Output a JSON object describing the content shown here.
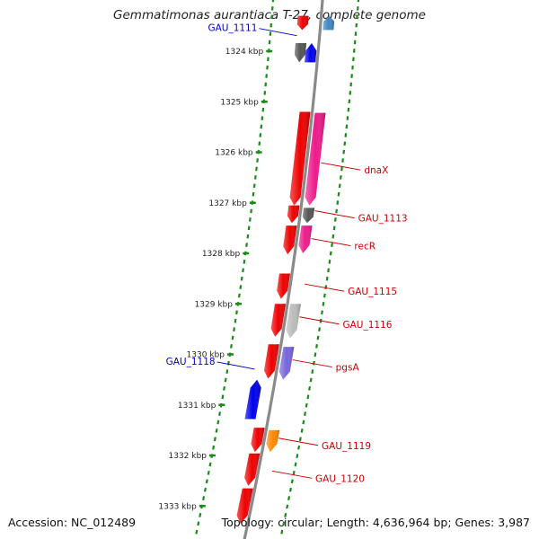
{
  "title": "Gemmatimonas aurantiaca T-27, complete genome",
  "footer": {
    "accession": "Accession: NC_012489",
    "summary": "Topology: circular; Length: 4,636,964 bp; Genes: 3,987"
  },
  "ticks": [
    {
      "label": "1324 kbp",
      "kbp": 1324
    },
    {
      "label": "1325 kbp",
      "kbp": 1325
    },
    {
      "label": "1326 kbp",
      "kbp": 1326
    },
    {
      "label": "1327 kbp",
      "kbp": 1327
    },
    {
      "label": "1328 kbp",
      "kbp": 1328
    },
    {
      "label": "1329 kbp",
      "kbp": 1329
    },
    {
      "label": "1330 kbp",
      "kbp": 1330
    },
    {
      "label": "1331 kbp",
      "kbp": 1331
    },
    {
      "label": "1332 kbp",
      "kbp": 1332
    },
    {
      "label": "1333 kbp",
      "kbp": 1333
    }
  ],
  "genes": [
    {
      "id": "g-top-red",
      "start": 1323.3,
      "end": 1323.58,
      "strand": "-",
      "track": "inner2",
      "color": "#ee0000"
    },
    {
      "id": "g-top-blue",
      "start": 1323.3,
      "end": 1323.58,
      "strand": "+",
      "track": "outer1",
      "color": "#3f86c4"
    },
    {
      "id": "gau1111",
      "start": 1323.84,
      "end": 1324.22,
      "strand": "-",
      "track": "inner2",
      "color": "#555555"
    },
    {
      "id": "gau1111b",
      "start": 1323.84,
      "end": 1324.22,
      "strand": "+",
      "track": "inner1",
      "color": "#0000ee"
    },
    {
      "id": "dnaX",
      "start": 1325.2,
      "end": 1327.05,
      "strand": "-",
      "track": "inner1",
      "color": "#ee0000"
    },
    {
      "id": "dnaX-b",
      "start": 1325.22,
      "end": 1327.05,
      "strand": "-",
      "track": "outer1",
      "color": "#ee1a8c"
    },
    {
      "id": "gau1113",
      "start": 1327.05,
      "end": 1327.4,
      "strand": "-",
      "track": "inner1",
      "color": "#ee0000"
    },
    {
      "id": "gau1113-b",
      "start": 1327.1,
      "end": 1327.4,
      "strand": "-",
      "track": "outer1",
      "color": "#555555"
    },
    {
      "id": "recR",
      "start": 1327.45,
      "end": 1328.02,
      "strand": "-",
      "track": "inner1",
      "color": "#ee0000"
    },
    {
      "id": "recR-b",
      "start": 1327.45,
      "end": 1328.0,
      "strand": "-",
      "track": "outer1",
      "color": "#ee1a8c"
    },
    {
      "id": "gau1115",
      "start": 1328.4,
      "end": 1328.9,
      "strand": "-",
      "track": "inner1",
      "color": "#ee0000"
    },
    {
      "id": "gau1116",
      "start": 1329.0,
      "end": 1329.65,
      "strand": "-",
      "track": "inner1",
      "color": "#ee0000"
    },
    {
      "id": "gau1116-b",
      "start": 1329.0,
      "end": 1329.68,
      "strand": "-",
      "track": "outer1",
      "color": "#bbbbbb"
    },
    {
      "id": "pgsA",
      "start": 1329.8,
      "end": 1330.48,
      "strand": "-",
      "track": "inner1",
      "color": "#ee0000"
    },
    {
      "id": "pgsA-b",
      "start": 1329.85,
      "end": 1330.5,
      "strand": "-",
      "track": "outer1",
      "color": "#7766dd"
    },
    {
      "id": "gau1118",
      "start": 1330.5,
      "end": 1331.28,
      "strand": "+",
      "track": "inner2",
      "color": "#0000ee"
    },
    {
      "id": "gau1119",
      "start": 1331.45,
      "end": 1331.93,
      "strand": "-",
      "track": "inner1",
      "color": "#ee0000"
    },
    {
      "id": "gau1119-b",
      "start": 1331.5,
      "end": 1331.93,
      "strand": "-",
      "track": "outer1",
      "color": "#ff8800"
    },
    {
      "id": "gau1120",
      "start": 1331.96,
      "end": 1332.6,
      "strand": "-",
      "track": "inner1",
      "color": "#ee0000"
    },
    {
      "id": "g-bottom",
      "start": 1332.65,
      "end": 1333.35,
      "strand": "-",
      "track": "inner1",
      "color": "#ee0000"
    }
  ],
  "labels": [
    {
      "text": "GAU_1111",
      "color": "#0000cc",
      "side": "left",
      "kbp": 1323.55,
      "target": "inner2"
    },
    {
      "text": "dnaX",
      "color": "#cc0000",
      "side": "right",
      "kbp": 1326.35,
      "target": "outer1"
    },
    {
      "text": "GAU_1113",
      "color": "#cc0000",
      "side": "right",
      "kbp": 1327.3,
      "target": "outer1"
    },
    {
      "text": "recR",
      "color": "#cc0000",
      "side": "right",
      "kbp": 1327.85,
      "target": "outer1"
    },
    {
      "text": "GAU_1115",
      "color": "#cc0000",
      "side": "right",
      "kbp": 1328.75,
      "target": "outer1"
    },
    {
      "text": "GAU_1116",
      "color": "#cc0000",
      "side": "right",
      "kbp": 1329.4,
      "target": "outer1"
    },
    {
      "text": "GAU_1118",
      "color": "#0000cc",
      "side": "left",
      "kbp": 1330.15,
      "target": "inner2"
    },
    {
      "text": "pgsA",
      "color": "#cc0000",
      "side": "right",
      "kbp": 1330.25,
      "target": "outer1"
    },
    {
      "text": "GAU_1119",
      "color": "#cc0000",
      "side": "right",
      "kbp": 1331.8,
      "target": "outer1"
    },
    {
      "text": "GAU_1120",
      "color": "#cc0000",
      "side": "right",
      "kbp": 1332.45,
      "target": "outer1"
    }
  ],
  "colors": {
    "backbone": "#8a8a8a",
    "tick_dots": "#1a8a1a",
    "tick_major": "#1a8a1a"
  }
}
